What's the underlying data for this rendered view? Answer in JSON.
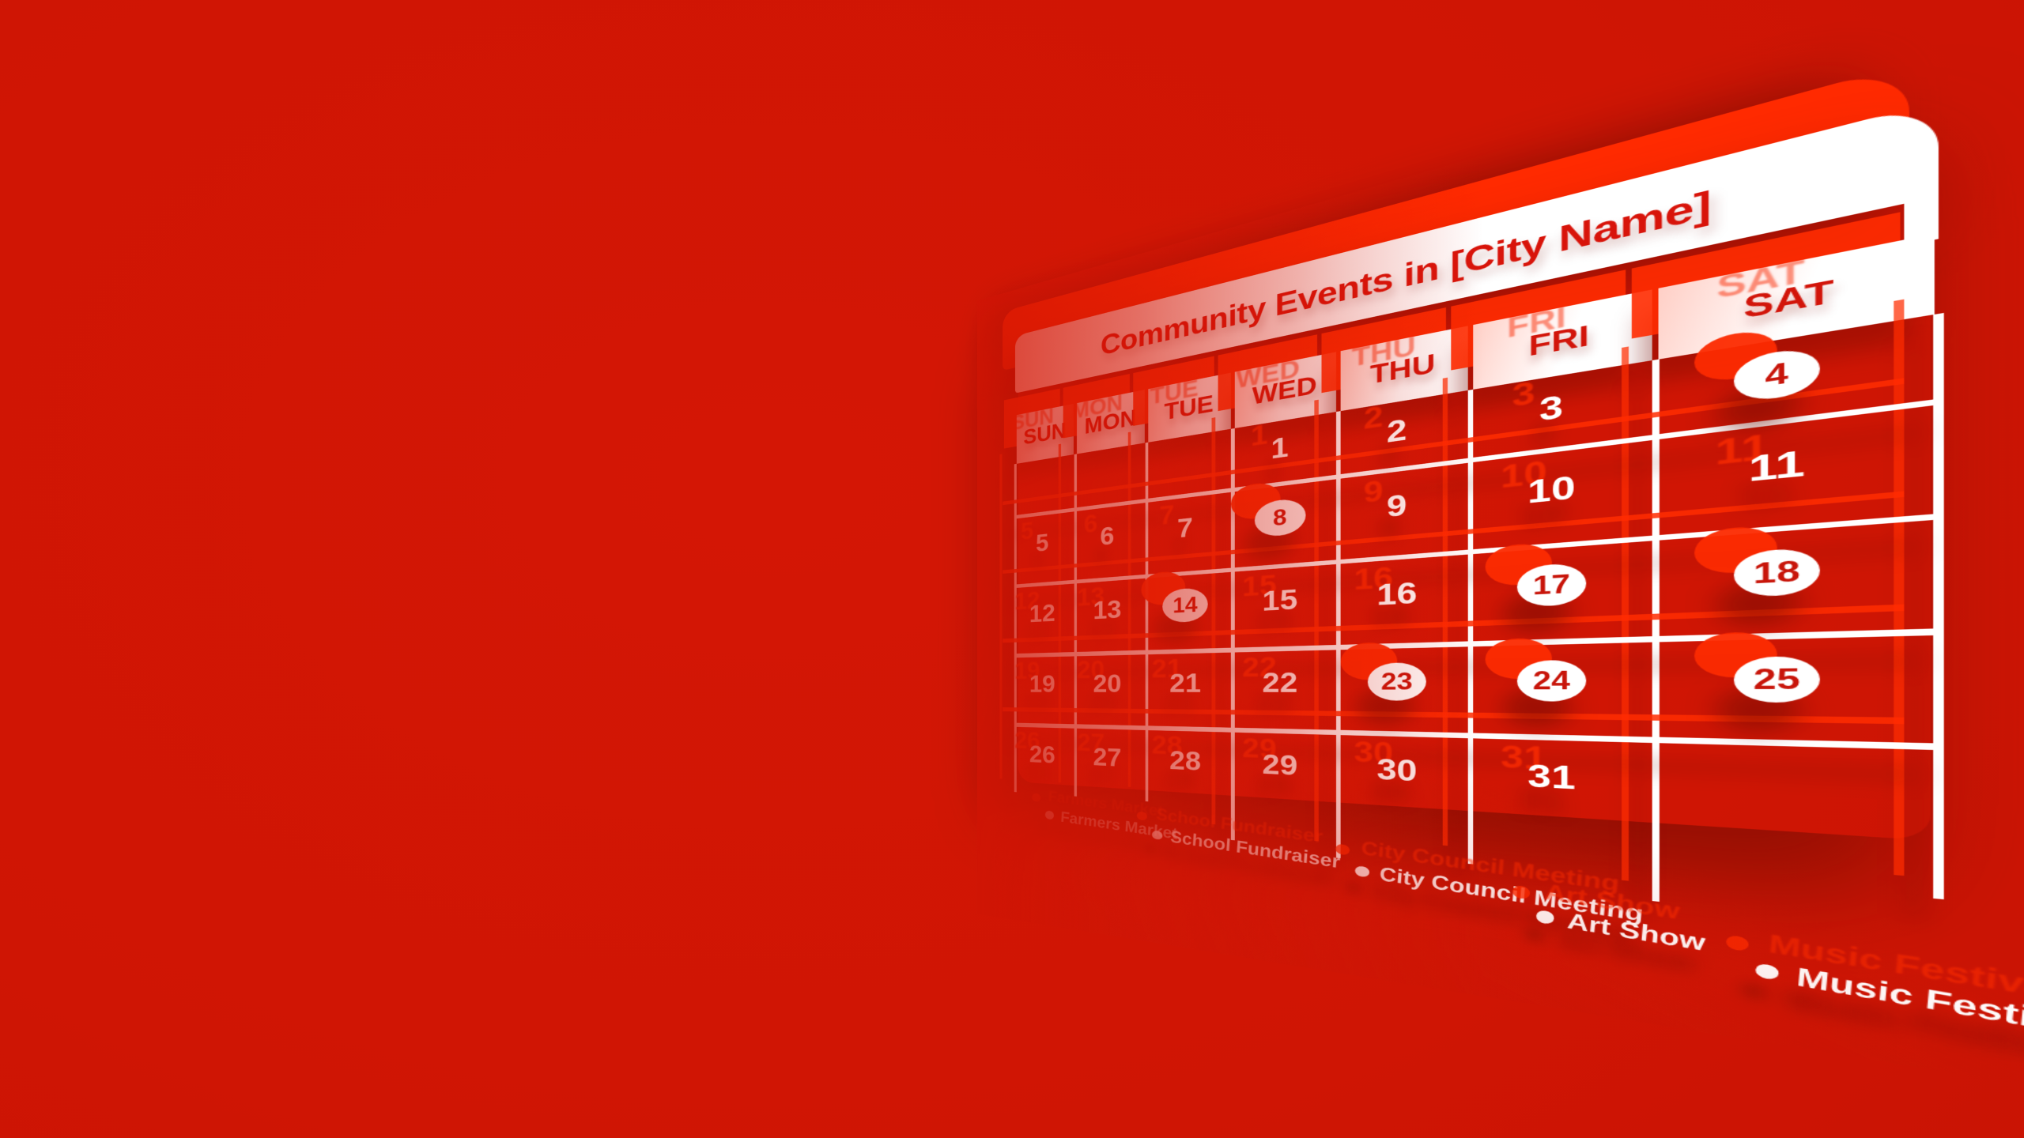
{
  "calendar": {
    "title": "Community Events in [City Name]",
    "days": [
      "SUN",
      "MON",
      "TUE",
      "WED",
      "THU",
      "FRI",
      "SAT"
    ],
    "weeks": [
      [
        "",
        "",
        "",
        "1",
        "2",
        "3",
        "4"
      ],
      [
        "5",
        "6",
        "7",
        "8",
        "9",
        "10",
        "11"
      ],
      [
        "12",
        "13",
        "14",
        "15",
        "16",
        "17",
        "18"
      ],
      [
        "19",
        "20",
        "21",
        "22",
        "23",
        "24",
        "25"
      ],
      [
        "26",
        "27",
        "28",
        "29",
        "30",
        "31",
        ""
      ]
    ],
    "event_dates": [
      "4",
      "8",
      "14",
      "17",
      "18",
      "23",
      "24",
      "25"
    ]
  },
  "legend": {
    "items": [
      {
        "label": "Farmers Market"
      },
      {
        "label": "School Fundraiser"
      },
      {
        "label": "City Council Meeting"
      },
      {
        "label": "Art Show"
      },
      {
        "label": "Music Festival"
      }
    ]
  },
  "colors": {
    "background": "#d01505",
    "card": "#ffffff",
    "accent_text": "#d8140a",
    "ghost_red": "#ff2d00",
    "shadow_red": "#7c0f03"
  }
}
